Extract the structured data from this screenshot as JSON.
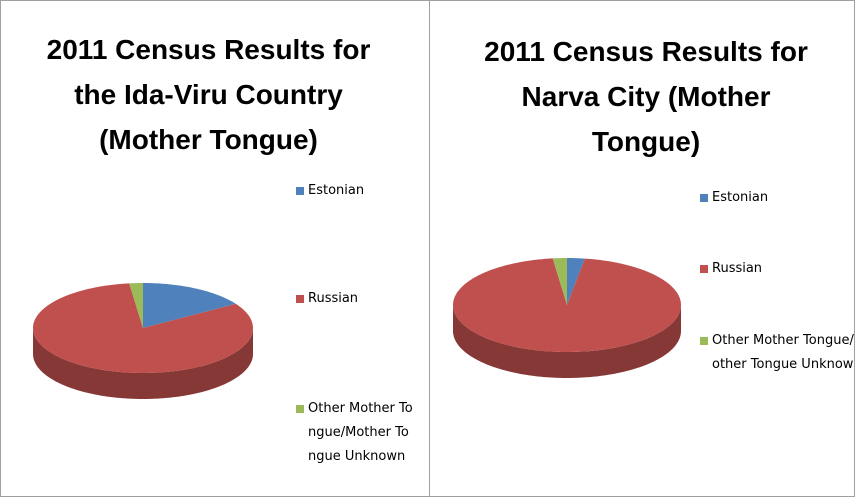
{
  "chart_data": [
    {
      "type": "pie",
      "title": "2011 Census Results for the Ida-Viru Country (Mother Tongue)",
      "categories": [
        "Estonian",
        "Russian",
        "Other Mother Tongue/Mother Tongue Unknown"
      ],
      "values": [
        16,
        82,
        2
      ],
      "colors": [
        "#4f81bd",
        "#c0504d",
        "#9bbb59"
      ],
      "legend": "right"
    },
    {
      "type": "pie",
      "title": "2011 Census Results for Narva City (Mother Tongue)",
      "categories": [
        "Estonian",
        "Russian",
        "Other Mother Tongue/Mother Tongue Unknown"
      ],
      "values": [
        2.5,
        95.5,
        2
      ],
      "colors": [
        "#4f81bd",
        "#c0504d",
        "#9bbb59"
      ],
      "legend": "right"
    }
  ]
}
